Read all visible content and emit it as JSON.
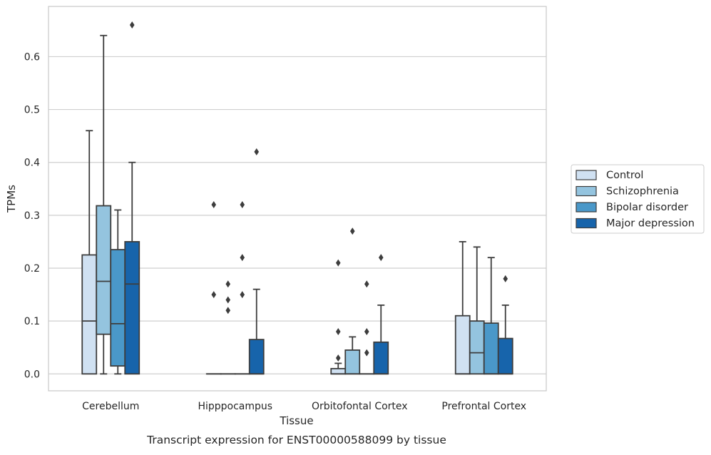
{
  "caption": "Transcript expression for ENST00000588099 by tissue",
  "colors": {
    "Control": "#d0e1f2",
    "Schizophrenia": "#94c4df",
    "Bipolar disorder": "#4a98c9",
    "Major depression": "#1764ab",
    "edge": "#3d3d3d",
    "grid": "#cfcfcf",
    "frame": "#cccccc"
  },
  "chart_data": {
    "type": "box",
    "title": "",
    "xlabel": "Tissue",
    "ylabel": "TPMs",
    "ylim": [
      -0.032,
      0.695
    ],
    "yticks": [
      0.0,
      0.1,
      0.2,
      0.3,
      0.4,
      0.5,
      0.6
    ],
    "ytick_labels": [
      "0.0",
      "0.1",
      "0.2",
      "0.3",
      "0.4",
      "0.5",
      "0.6"
    ],
    "grid": true,
    "legend_position": "right",
    "categories": [
      "Cerebellum",
      "Hipppocampus",
      "Orbitofontal Cortex",
      "Prefrontal Cortex"
    ],
    "series": [
      {
        "name": "Control",
        "boxes": [
          {
            "q1": 0.0,
            "median": 0.1,
            "q3": 0.225,
            "whislo": 0.0,
            "whishi": 0.46,
            "fliers": []
          },
          {
            "q1": 0.0,
            "median": 0.0,
            "q3": 0.0,
            "whislo": 0.0,
            "whishi": 0.0,
            "fliers": [
              0.15,
              0.32
            ]
          },
          {
            "q1": 0.0,
            "median": 0.0,
            "q3": 0.01,
            "whislo": 0.0,
            "whishi": 0.02,
            "fliers": [
              0.03,
              0.08,
              0.21
            ]
          },
          {
            "q1": 0.0,
            "median": 0.0,
            "q3": 0.11,
            "whislo": 0.0,
            "whishi": 0.25,
            "fliers": []
          }
        ]
      },
      {
        "name": "Schizophrenia",
        "boxes": [
          {
            "q1": 0.075,
            "median": 0.175,
            "q3": 0.318,
            "whislo": 0.0,
            "whishi": 0.64,
            "fliers": []
          },
          {
            "q1": 0.0,
            "median": 0.0,
            "q3": 0.0,
            "whislo": 0.0,
            "whishi": 0.0,
            "fliers": [
              0.12,
              0.14,
              0.17
            ]
          },
          {
            "q1": 0.0,
            "median": 0.0,
            "q3": 0.045,
            "whislo": 0.0,
            "whishi": 0.07,
            "fliers": [
              0.27
            ]
          },
          {
            "q1": 0.0,
            "median": 0.04,
            "q3": 0.1,
            "whislo": 0.0,
            "whishi": 0.24,
            "fliers": []
          }
        ]
      },
      {
        "name": "Bipolar disorder",
        "boxes": [
          {
            "q1": 0.015,
            "median": 0.095,
            "q3": 0.235,
            "whislo": 0.0,
            "whishi": 0.31,
            "fliers": []
          },
          {
            "q1": 0.0,
            "median": 0.0,
            "q3": 0.0,
            "whislo": 0.0,
            "whishi": 0.0,
            "fliers": [
              0.15,
              0.22,
              0.32
            ]
          },
          {
            "q1": 0.0,
            "median": 0.0,
            "q3": 0.0,
            "whislo": 0.0,
            "whishi": 0.0,
            "fliers": [
              0.04,
              0.08,
              0.17
            ]
          },
          {
            "q1": 0.0,
            "median": 0.0,
            "q3": 0.096,
            "whislo": 0.0,
            "whishi": 0.22,
            "fliers": []
          }
        ]
      },
      {
        "name": "Major depression",
        "boxes": [
          {
            "q1": 0.0,
            "median": 0.17,
            "q3": 0.25,
            "whislo": 0.0,
            "whishi": 0.4,
            "fliers": [
              0.66
            ]
          },
          {
            "q1": 0.0,
            "median": 0.0,
            "q3": 0.065,
            "whislo": 0.0,
            "whishi": 0.16,
            "fliers": [
              0.42
            ]
          },
          {
            "q1": 0.0,
            "median": 0.0,
            "q3": 0.06,
            "whislo": 0.0,
            "whishi": 0.13,
            "fliers": [
              0.22
            ]
          },
          {
            "q1": 0.0,
            "median": 0.0,
            "q3": 0.067,
            "whislo": 0.0,
            "whishi": 0.13,
            "fliers": [
              0.18
            ]
          }
        ]
      }
    ]
  }
}
